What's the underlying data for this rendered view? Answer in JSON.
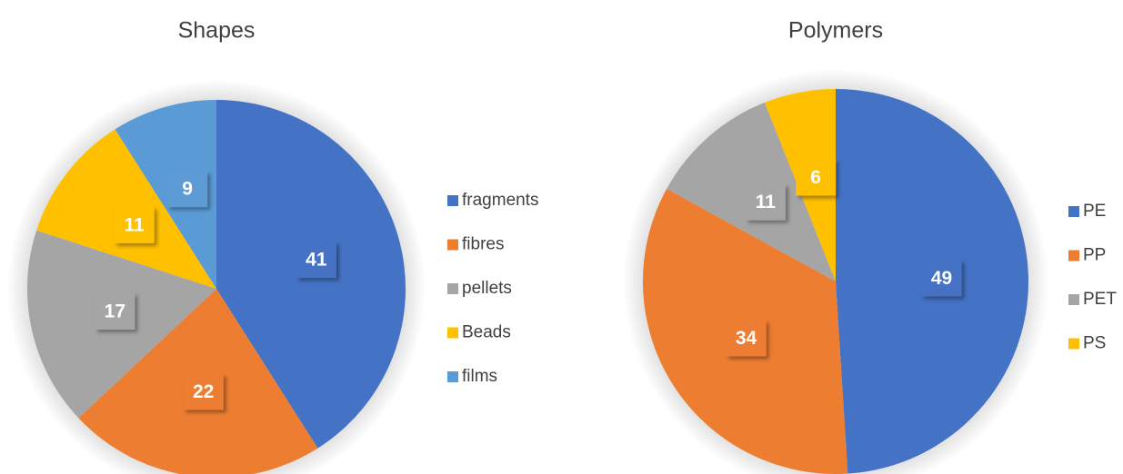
{
  "chart_data": [
    {
      "type": "pie",
      "title": "Shapes",
      "categories": [
        "fragments",
        "fibres",
        "pellets",
        "Beads",
        "films"
      ],
      "values": [
        41,
        22,
        17,
        11,
        9
      ],
      "colors": [
        "#4472c4",
        "#ed7d31",
        "#a5a5a5",
        "#ffc000",
        "#5b9bd5"
      ],
      "legend": "right"
    },
    {
      "type": "pie",
      "title": "Polymers",
      "categories": [
        "PE",
        "PP",
        "PET",
        "PS"
      ],
      "values": [
        49,
        34,
        11,
        6
      ],
      "colors": [
        "#4472c4",
        "#ed7d31",
        "#a5a5a5",
        "#ffc000"
      ],
      "legend": "right"
    }
  ]
}
